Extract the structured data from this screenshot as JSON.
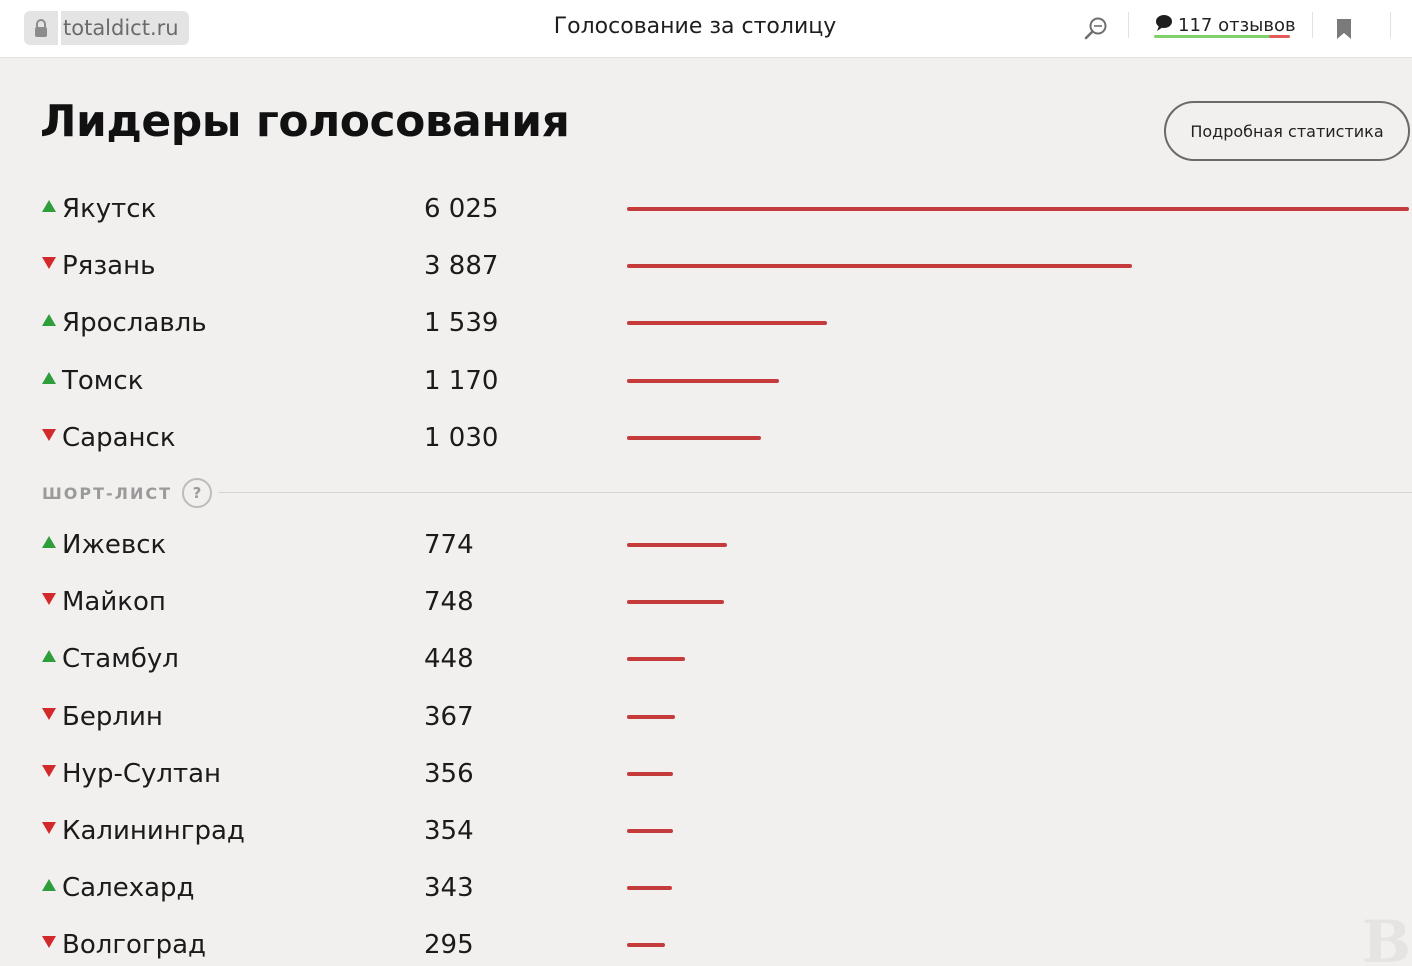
{
  "topbar": {
    "url": "totaldict.ru",
    "title": "Голосование за столицу",
    "reviews_label": "117 отзывов"
  },
  "icons": {
    "lock": "lock-icon",
    "search": "search-icon",
    "comment": "speech-bubble-icon",
    "bookmark": "bookmark-icon",
    "up": "triangle-up-icon",
    "down": "triangle-down-icon"
  },
  "colors": {
    "up": "#2e9e3a",
    "down": "#d22a2a",
    "bar": "#c53a3a"
  },
  "main": {
    "heading": "Лидеры голосования",
    "stats_button": "Подробная статистика",
    "shortlist_label": "ШОРТ-ЛИСТ",
    "shortlist_help": "?"
  },
  "leaders": [
    {
      "city": "Якутск",
      "votes": "6 025",
      "value": 6025,
      "trend": "up"
    },
    {
      "city": "Рязань",
      "votes": "3 887",
      "value": 3887,
      "trend": "down"
    },
    {
      "city": "Ярославль",
      "votes": "1 539",
      "value": 1539,
      "trend": "up"
    },
    {
      "city": "Томск",
      "votes": "1 170",
      "value": 1170,
      "trend": "up"
    },
    {
      "city": "Саранск",
      "votes": "1 030",
      "value": 1030,
      "trend": "down"
    }
  ],
  "shortlist": [
    {
      "city": "Ижевск",
      "votes": "774",
      "value": 774,
      "trend": "up"
    },
    {
      "city": "Майкоп",
      "votes": "748",
      "value": 748,
      "trend": "down"
    },
    {
      "city": "Стамбул",
      "votes": "448",
      "value": 448,
      "trend": "up"
    },
    {
      "city": "Берлин",
      "votes": "367",
      "value": 367,
      "trend": "down"
    },
    {
      "city": "Нур-Султан",
      "votes": "356",
      "value": 356,
      "trend": "down"
    },
    {
      "city": "Калининград",
      "votes": "354",
      "value": 354,
      "trend": "down"
    },
    {
      "city": "Салехард",
      "votes": "343",
      "value": 343,
      "trend": "up"
    },
    {
      "city": "Волгоград",
      "votes": "295",
      "value": 295,
      "trend": "down"
    }
  ]
}
